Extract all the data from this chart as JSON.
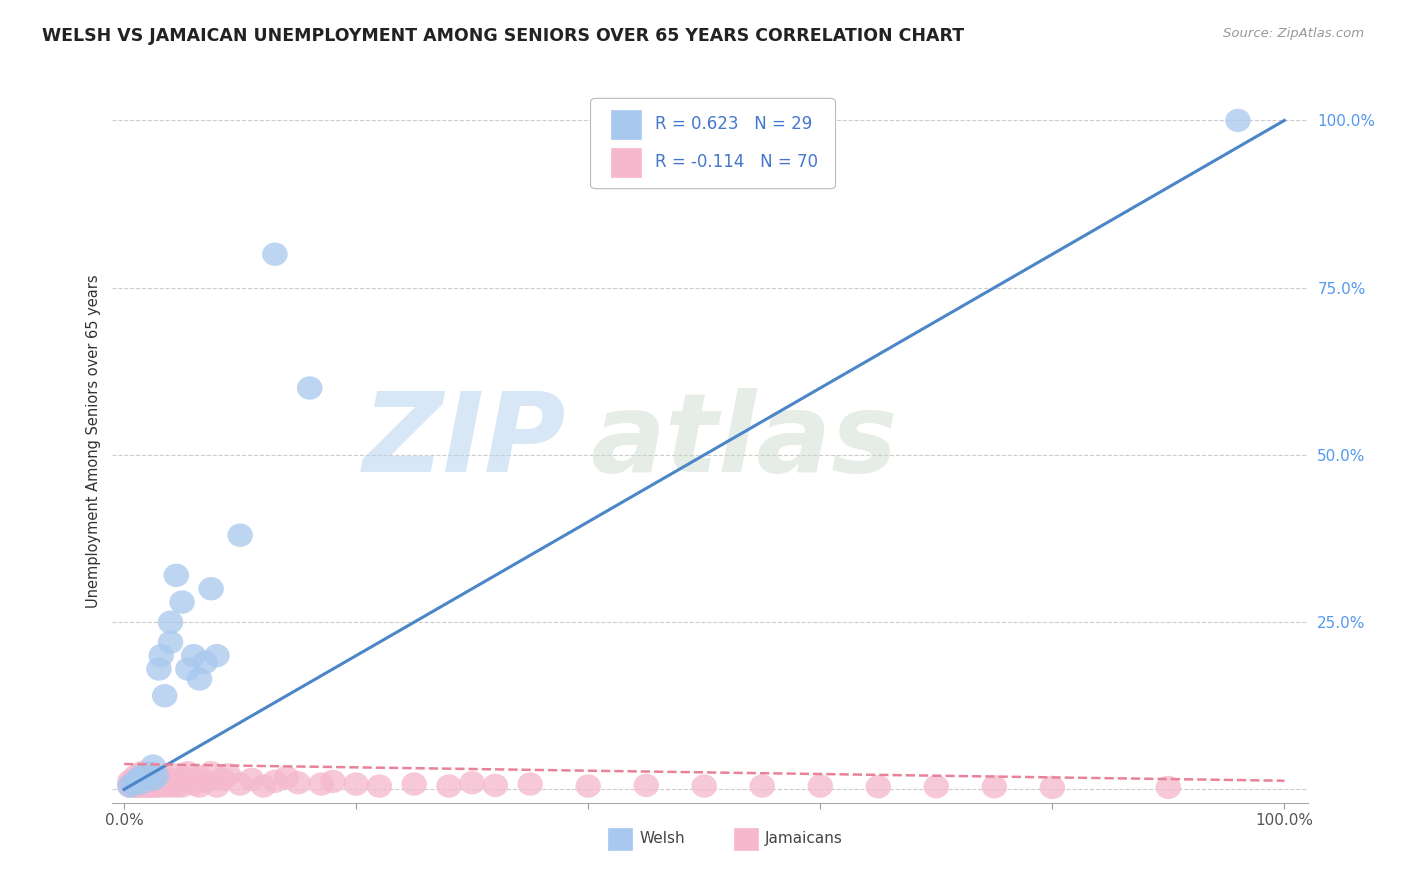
{
  "title": "WELSH VS JAMAICAN UNEMPLOYMENT AMONG SENIORS OVER 65 YEARS CORRELATION CHART",
  "source": "Source: ZipAtlas.com",
  "ylabel": "Unemployment Among Seniors over 65 years",
  "welsh_R": 0.623,
  "welsh_N": 29,
  "jamaican_R": -0.114,
  "jamaican_N": 70,
  "welsh_color": "#a8c8ee",
  "jamaican_color": "#f5b8cc",
  "welsh_trend_color": "#4a86c8",
  "jamaican_trend_color": "#e8829a",
  "legend_welsh_label": "Welsh",
  "legend_jamaican_label": "Jamaicans",
  "watermark_zip": "ZIP",
  "watermark_atlas": "atlas",
  "background_color": "#ffffff",
  "welsh_slope": 1.0,
  "welsh_intercept": 0.0,
  "jamaican_slope": -0.025,
  "jamaican_intercept": 0.038,
  "welsh_points_x": [
    0.005,
    0.008,
    0.01,
    0.012,
    0.015,
    0.015,
    0.018,
    0.02,
    0.022,
    0.025,
    0.025,
    0.028,
    0.03,
    0.032,
    0.035,
    0.04,
    0.04,
    0.045,
    0.05,
    0.055,
    0.06,
    0.065,
    0.07,
    0.075,
    0.08,
    0.1,
    0.13,
    0.16,
    0.96
  ],
  "welsh_points_y": [
    0.005,
    0.008,
    0.01,
    0.015,
    0.01,
    0.02,
    0.015,
    0.02,
    0.025,
    0.015,
    0.035,
    0.02,
    0.18,
    0.2,
    0.14,
    0.22,
    0.25,
    0.32,
    0.28,
    0.18,
    0.2,
    0.165,
    0.19,
    0.3,
    0.2,
    0.38,
    0.8,
    0.6,
    1.0
  ],
  "jamaican_points_x": [
    0.005,
    0.005,
    0.007,
    0.008,
    0.008,
    0.01,
    0.01,
    0.01,
    0.012,
    0.012,
    0.015,
    0.015,
    0.015,
    0.018,
    0.018,
    0.02,
    0.02,
    0.02,
    0.022,
    0.022,
    0.025,
    0.025,
    0.028,
    0.028,
    0.03,
    0.03,
    0.032,
    0.035,
    0.035,
    0.04,
    0.04,
    0.042,
    0.045,
    0.048,
    0.05,
    0.052,
    0.055,
    0.06,
    0.065,
    0.065,
    0.07,
    0.075,
    0.08,
    0.085,
    0.09,
    0.1,
    0.11,
    0.12,
    0.13,
    0.14,
    0.15,
    0.17,
    0.18,
    0.2,
    0.22,
    0.25,
    0.28,
    0.3,
    0.32,
    0.35,
    0.4,
    0.45,
    0.5,
    0.55,
    0.6,
    0.65,
    0.7,
    0.75,
    0.8,
    0.9
  ],
  "jamaican_points_y": [
    0.005,
    0.012,
    0.008,
    0.005,
    0.015,
    0.005,
    0.01,
    0.02,
    0.005,
    0.015,
    0.005,
    0.01,
    0.025,
    0.005,
    0.018,
    0.005,
    0.01,
    0.022,
    0.005,
    0.015,
    0.005,
    0.012,
    0.005,
    0.02,
    0.005,
    0.015,
    0.008,
    0.005,
    0.018,
    0.005,
    0.012,
    0.022,
    0.005,
    0.015,
    0.005,
    0.018,
    0.025,
    0.008,
    0.005,
    0.018,
    0.012,
    0.025,
    0.005,
    0.015,
    0.022,
    0.008,
    0.015,
    0.005,
    0.012,
    0.018,
    0.01,
    0.008,
    0.012,
    0.008,
    0.005,
    0.008,
    0.005,
    0.01,
    0.006,
    0.008,
    0.005,
    0.006,
    0.005,
    0.005,
    0.005,
    0.004,
    0.004,
    0.004,
    0.003,
    0.003
  ]
}
